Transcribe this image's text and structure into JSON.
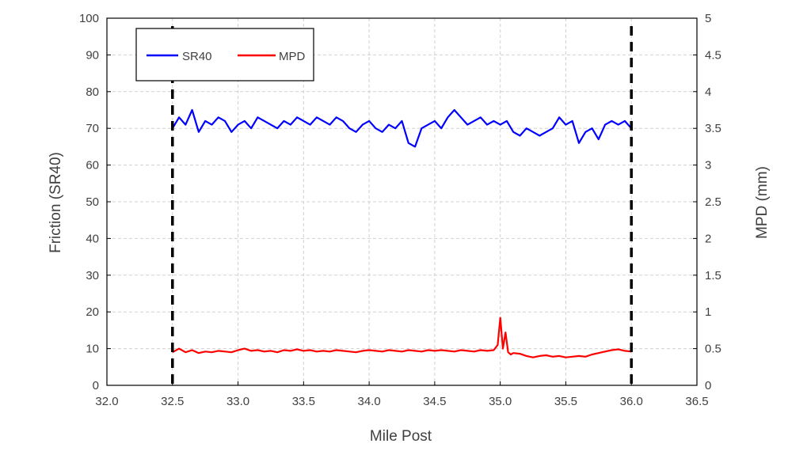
{
  "chart_data": {
    "type": "line",
    "xlabel": "Mile Post",
    "ylabel": "Friction (SR40)",
    "y2label": "MPD (mm)",
    "xlim": [
      32.0,
      36.5
    ],
    "ylim": [
      0,
      100
    ],
    "y2lim": [
      0,
      5
    ],
    "xticks": [
      "32.0",
      "32.5",
      "33.0",
      "33.5",
      "34.0",
      "34.5",
      "35.0",
      "35.5",
      "36.0",
      "36.5"
    ],
    "yticks": [
      "0",
      "10",
      "20",
      "30",
      "40",
      "50",
      "60",
      "70",
      "80",
      "90",
      "100"
    ],
    "y2ticks": [
      "0",
      "0.5",
      "1",
      "1.5",
      "2",
      "2.5",
      "3",
      "3.5",
      "4",
      "4.5",
      "5"
    ],
    "grid": true,
    "legend_position": "top-left",
    "markers": [
      32.5,
      36.0
    ],
    "series": [
      {
        "name": "SR40",
        "axis": "left",
        "color": "#0000ff",
        "x": [
          32.5,
          32.55,
          32.6,
          32.65,
          32.7,
          32.75,
          32.8,
          32.85,
          32.9,
          32.95,
          33.0,
          33.05,
          33.1,
          33.15,
          33.2,
          33.25,
          33.3,
          33.35,
          33.4,
          33.45,
          33.5,
          33.55,
          33.6,
          33.65,
          33.7,
          33.75,
          33.8,
          33.85,
          33.9,
          33.95,
          34.0,
          34.05,
          34.1,
          34.15,
          34.2,
          34.25,
          34.3,
          34.35,
          34.4,
          34.45,
          34.5,
          34.55,
          34.6,
          34.65,
          34.7,
          34.75,
          34.8,
          34.85,
          34.9,
          34.95,
          35.0,
          35.05,
          35.1,
          35.15,
          35.2,
          35.25,
          35.3,
          35.35,
          35.4,
          35.45,
          35.5,
          35.55,
          35.6,
          35.65,
          35.7,
          35.75,
          35.8,
          35.85,
          35.9,
          35.95,
          36.0
        ],
        "values": [
          70,
          73,
          71,
          75,
          69,
          72,
          71,
          73,
          72,
          69,
          71,
          72,
          70,
          73,
          72,
          71,
          70,
          72,
          71,
          73,
          72,
          71,
          73,
          72,
          71,
          73,
          72,
          70,
          69,
          71,
          72,
          70,
          69,
          71,
          70,
          72,
          66,
          65,
          70,
          71,
          72,
          70,
          73,
          75,
          73,
          71,
          72,
          73,
          71,
          72,
          71,
          72,
          69,
          68,
          70,
          69,
          68,
          69,
          70,
          73,
          71,
          72,
          66,
          69,
          70,
          67,
          71,
          72,
          71,
          72,
          70
        ]
      },
      {
        "name": "MPD",
        "axis": "right",
        "color": "#ff0000",
        "x": [
          32.5,
          32.55,
          32.6,
          32.65,
          32.7,
          32.75,
          32.8,
          32.85,
          32.9,
          32.95,
          33.0,
          33.05,
          33.1,
          33.15,
          33.2,
          33.25,
          33.3,
          33.35,
          33.4,
          33.45,
          33.5,
          33.55,
          33.6,
          33.65,
          33.7,
          33.75,
          33.8,
          33.85,
          33.9,
          33.95,
          34.0,
          34.05,
          34.1,
          34.15,
          34.2,
          34.25,
          34.3,
          34.35,
          34.4,
          34.45,
          34.5,
          34.55,
          34.6,
          34.65,
          34.7,
          34.75,
          34.8,
          34.85,
          34.9,
          34.95,
          34.98,
          35.0,
          35.02,
          35.04,
          35.06,
          35.08,
          35.1,
          35.15,
          35.2,
          35.25,
          35.3,
          35.35,
          35.4,
          35.45,
          35.5,
          35.55,
          35.6,
          35.65,
          35.7,
          35.75,
          35.8,
          35.85,
          35.9,
          35.95,
          36.0
        ],
        "values": [
          0.45,
          0.5,
          0.45,
          0.48,
          0.44,
          0.46,
          0.45,
          0.47,
          0.46,
          0.45,
          0.48,
          0.5,
          0.47,
          0.48,
          0.46,
          0.47,
          0.45,
          0.48,
          0.47,
          0.49,
          0.47,
          0.48,
          0.46,
          0.47,
          0.46,
          0.48,
          0.47,
          0.46,
          0.45,
          0.47,
          0.48,
          0.47,
          0.46,
          0.48,
          0.47,
          0.46,
          0.48,
          0.47,
          0.46,
          0.48,
          0.47,
          0.48,
          0.47,
          0.46,
          0.48,
          0.47,
          0.46,
          0.48,
          0.47,
          0.48,
          0.55,
          0.92,
          0.5,
          0.72,
          0.45,
          0.42,
          0.44,
          0.43,
          0.4,
          0.38,
          0.4,
          0.41,
          0.39,
          0.4,
          0.38,
          0.39,
          0.4,
          0.39,
          0.42,
          0.44,
          0.46,
          0.48,
          0.49,
          0.47,
          0.46
        ]
      }
    ]
  }
}
